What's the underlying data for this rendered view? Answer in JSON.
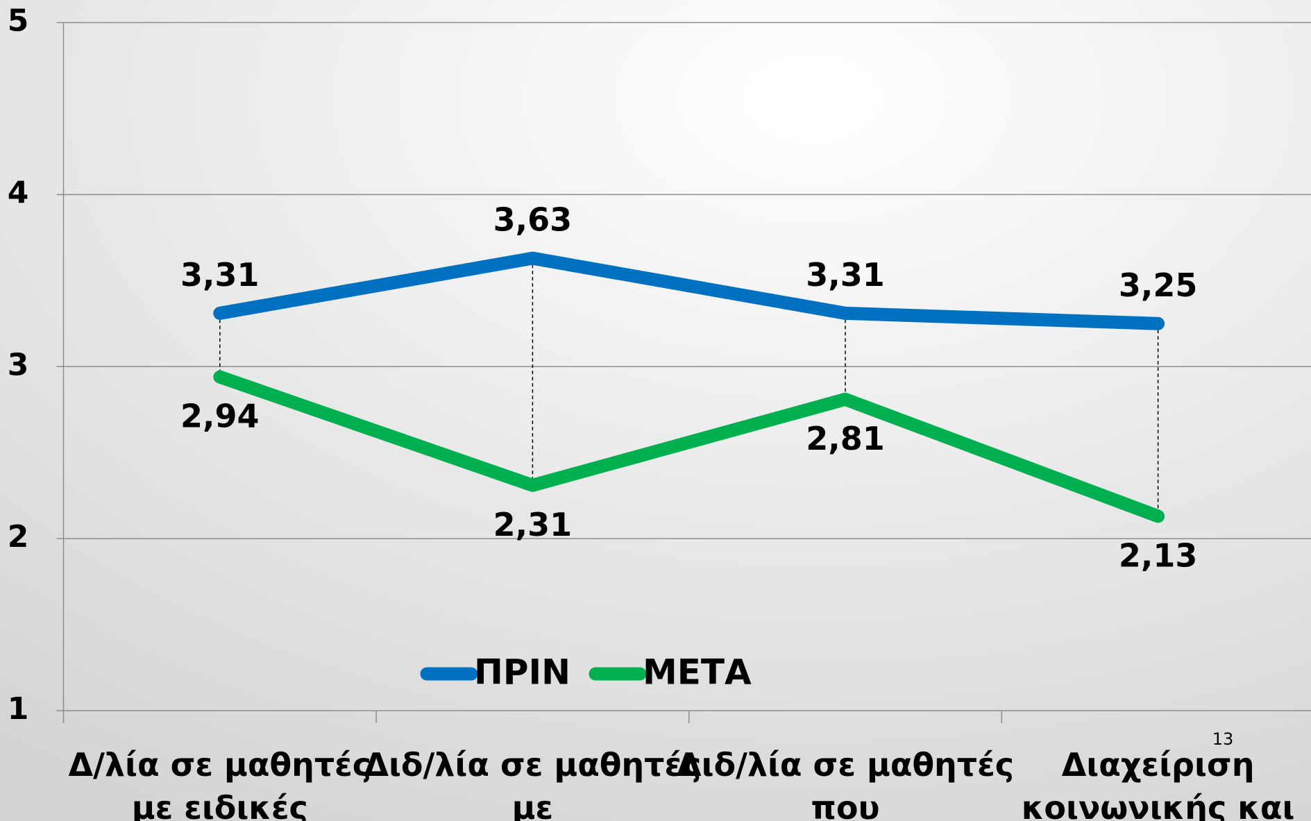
{
  "chart_data": {
    "type": "line",
    "categories": [
      "Δ/λία σε μαθητές με ειδικές",
      "Διδ/λία σε μαθητές με",
      "Διδ/λία σε μαθητές που",
      "Διαχείριση κοινωνικής και"
    ],
    "series": [
      {
        "name": "ΠΡΙΝ",
        "color": "#0070c0",
        "values": [
          3.31,
          3.63,
          3.31,
          3.25
        ],
        "value_labels": [
          "3,31",
          "3,63",
          "3,31",
          "3,25"
        ]
      },
      {
        "name": "ΜΕΤΑ",
        "color": "#00b050",
        "values": [
          2.94,
          2.31,
          2.81,
          2.13
        ],
        "value_labels": [
          "2,94",
          "2,31",
          "2,81",
          "2,13"
        ]
      }
    ],
    "ylim": [
      1,
      5
    ],
    "yticks": [
      1,
      2,
      3,
      4,
      5
    ],
    "grid": true,
    "legend": "bottom"
  },
  "slide_number": "13"
}
